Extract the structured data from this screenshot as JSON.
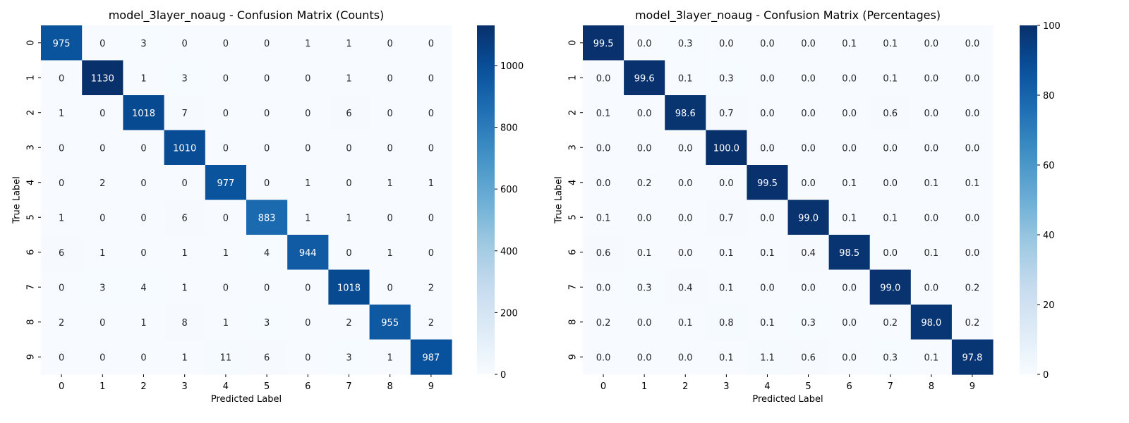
{
  "chart_data": [
    {
      "type": "heatmap",
      "title": "model_3layer_noaug - Confusion Matrix (Counts)",
      "xlabel": "Predicted Label",
      "ylabel": "True Label",
      "x_ticks": [
        "0",
        "1",
        "2",
        "3",
        "4",
        "5",
        "6",
        "7",
        "8",
        "9"
      ],
      "y_ticks": [
        "0",
        "1",
        "2",
        "3",
        "4",
        "5",
        "6",
        "7",
        "8",
        "9"
      ],
      "colormap": "Blues",
      "vmin": 0,
      "vmax": 1130,
      "format": "int",
      "colorbar_ticks": [
        0,
        200,
        400,
        600,
        800,
        1000
      ],
      "values": [
        [
          975,
          0,
          3,
          0,
          0,
          0,
          1,
          1,
          0,
          0
        ],
        [
          0,
          1130,
          1,
          3,
          0,
          0,
          0,
          1,
          0,
          0
        ],
        [
          1,
          0,
          1018,
          7,
          0,
          0,
          0,
          6,
          0,
          0
        ],
        [
          0,
          0,
          0,
          1010,
          0,
          0,
          0,
          0,
          0,
          0
        ],
        [
          0,
          2,
          0,
          0,
          977,
          0,
          1,
          0,
          1,
          1
        ],
        [
          1,
          0,
          0,
          6,
          0,
          883,
          1,
          1,
          0,
          0
        ],
        [
          6,
          1,
          0,
          1,
          1,
          4,
          944,
          0,
          1,
          0
        ],
        [
          0,
          3,
          4,
          1,
          0,
          0,
          0,
          1018,
          0,
          2
        ],
        [
          2,
          0,
          1,
          8,
          1,
          3,
          0,
          2,
          955,
          2
        ],
        [
          0,
          0,
          0,
          1,
          11,
          6,
          0,
          3,
          1,
          987
        ]
      ]
    },
    {
      "type": "heatmap",
      "title": "model_3layer_noaug - Confusion Matrix (Percentages)",
      "xlabel": "Predicted Label",
      "ylabel": "True Label",
      "x_ticks": [
        "0",
        "1",
        "2",
        "3",
        "4",
        "5",
        "6",
        "7",
        "8",
        "9"
      ],
      "y_ticks": [
        "0",
        "1",
        "2",
        "3",
        "4",
        "5",
        "6",
        "7",
        "8",
        "9"
      ],
      "colormap": "Blues",
      "vmin": 0,
      "vmax": 100,
      "format": "1f",
      "colorbar_ticks": [
        0,
        20,
        40,
        60,
        80,
        100
      ],
      "values": [
        [
          99.5,
          0.0,
          0.3,
          0.0,
          0.0,
          0.0,
          0.1,
          0.1,
          0.0,
          0.0
        ],
        [
          0.0,
          99.6,
          0.1,
          0.3,
          0.0,
          0.0,
          0.0,
          0.1,
          0.0,
          0.0
        ],
        [
          0.1,
          0.0,
          98.6,
          0.7,
          0.0,
          0.0,
          0.0,
          0.6,
          0.0,
          0.0
        ],
        [
          0.0,
          0.0,
          0.0,
          100.0,
          0.0,
          0.0,
          0.0,
          0.0,
          0.0,
          0.0
        ],
        [
          0.0,
          0.2,
          0.0,
          0.0,
          99.5,
          0.0,
          0.1,
          0.0,
          0.1,
          0.1
        ],
        [
          0.1,
          0.0,
          0.0,
          0.7,
          0.0,
          99.0,
          0.1,
          0.1,
          0.0,
          0.0
        ],
        [
          0.6,
          0.1,
          0.0,
          0.1,
          0.1,
          0.4,
          98.5,
          0.0,
          0.1,
          0.0
        ],
        [
          0.0,
          0.3,
          0.4,
          0.1,
          0.0,
          0.0,
          0.0,
          99.0,
          0.0,
          0.2
        ],
        [
          0.2,
          0.0,
          0.1,
          0.8,
          0.1,
          0.3,
          0.0,
          0.2,
          98.0,
          0.2
        ],
        [
          0.0,
          0.0,
          0.0,
          0.1,
          1.1,
          0.6,
          0.0,
          0.3,
          0.1,
          97.8
        ]
      ]
    }
  ]
}
